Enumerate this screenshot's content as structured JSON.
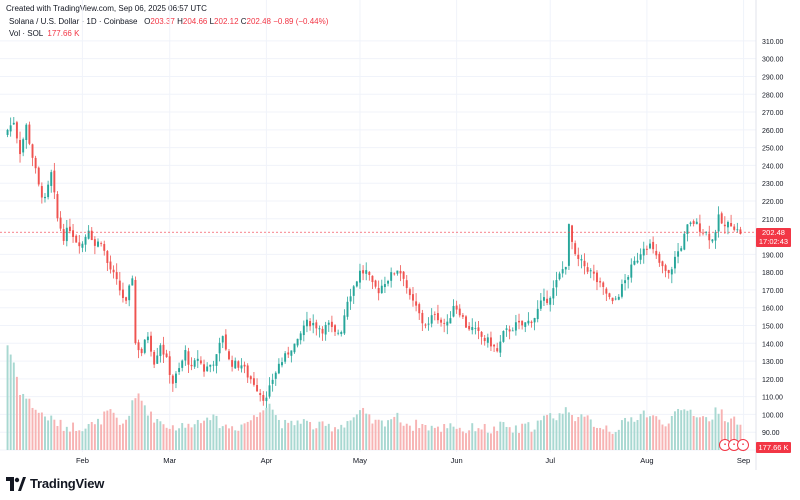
{
  "header": {
    "created": "Created with TradingView.com, Sep 06, 2025 06:57 UTC",
    "symbol": "Solana / U.S. Dollar · 1D · Coinbase",
    "o_label": "O",
    "o_value": "203.37",
    "h_label": "H",
    "h_value": "204.66",
    "l_label": "L",
    "l_value": "202.12",
    "c_label": "C",
    "c_value": "202.48",
    "change": "−0.89 (−0.44%)",
    "vol_label": "Vol · SOL",
    "vol_value": "177.66 K"
  },
  "price_badge": {
    "price": "202.48",
    "countdown": "17:02:43"
  },
  "volume_badge": "177.66 K",
  "footer": {
    "brand": "TradingView"
  },
  "colors": {
    "up": "#26a69a",
    "down": "#ef5350",
    "up_vol": "#a8d8d1",
    "down_vol": "#f7b3b3",
    "badge": "#f23645"
  },
  "event_icons": [
    "calendar-icon",
    "calendar-icon",
    "calendar-icon"
  ],
  "chart_data": {
    "type": "candlestick",
    "ylim": [
      80,
      315
    ],
    "yticks": [
      80,
      90,
      100,
      110,
      120,
      130,
      140,
      150,
      160,
      170,
      180,
      190,
      200,
      210,
      220,
      230,
      240,
      250,
      260,
      270,
      280,
      290,
      300,
      310
    ],
    "ytick_labels": [
      "80.00",
      "90.00",
      "100.00",
      "110.00",
      "120.00",
      "130.00",
      "140.00",
      "150.00",
      "160.00",
      "170.00",
      "180.00",
      "190.00",
      "200.00",
      "210.00",
      "220.00",
      "230.00",
      "240.00",
      "250.00",
      "260.00",
      "270.00",
      "280.00",
      "290.00",
      "300.00",
      "310.00"
    ],
    "x_labels": [
      {
        "label": "Feb",
        "bar": 24
      },
      {
        "label": "Mar",
        "bar": 52
      },
      {
        "label": "Apr",
        "bar": 83
      },
      {
        "label": "May",
        "bar": 113
      },
      {
        "label": "Jun",
        "bar": 144
      },
      {
        "label": "Jul",
        "bar": 174
      },
      {
        "label": "Aug",
        "bar": 205
      },
      {
        "label": "Sep",
        "bar": 236
      }
    ],
    "last_price": 202.48,
    "close_path": [
      [
        0,
        260
      ],
      [
        2,
        265
      ],
      [
        4,
        248
      ],
      [
        6,
        262
      ],
      [
        8,
        245
      ],
      [
        10,
        228
      ],
      [
        12,
        220
      ],
      [
        14,
        235
      ],
      [
        16,
        210
      ],
      [
        18,
        200
      ],
      [
        20,
        205
      ],
      [
        22,
        198
      ],
      [
        24,
        196
      ],
      [
        26,
        205
      ],
      [
        28,
        195
      ],
      [
        30,
        198
      ],
      [
        32,
        185
      ],
      [
        34,
        178
      ],
      [
        36,
        170
      ],
      [
        38,
        162
      ],
      [
        40,
        178
      ],
      [
        41,
        140
      ],
      [
        43,
        135
      ],
      [
        45,
        145
      ],
      [
        47,
        130
      ],
      [
        49,
        140
      ],
      [
        51,
        130
      ],
      [
        53,
        118
      ],
      [
        55,
        125
      ],
      [
        57,
        135
      ],
      [
        59,
        125
      ],
      [
        61,
        132
      ],
      [
        63,
        125
      ],
      [
        65,
        128
      ],
      [
        67,
        132
      ],
      [
        69,
        145
      ],
      [
        71,
        130
      ],
      [
        73,
        128
      ],
      [
        75,
        128
      ],
      [
        77,
        122
      ],
      [
        79,
        118
      ],
      [
        81,
        112
      ],
      [
        83,
        108
      ],
      [
        85,
        120
      ],
      [
        87,
        128
      ],
      [
        89,
        132
      ],
      [
        91,
        138
      ],
      [
        93,
        140
      ],
      [
        95,
        150
      ],
      [
        97,
        152
      ],
      [
        99,
        150
      ],
      [
        101,
        148
      ],
      [
        103,
        150
      ],
      [
        105,
        145
      ],
      [
        107,
        148
      ],
      [
        109,
        165
      ],
      [
        111,
        172
      ],
      [
        113,
        180
      ],
      [
        115,
        180
      ],
      [
        117,
        172
      ],
      [
        119,
        170
      ],
      [
        121,
        175
      ],
      [
        123,
        178
      ],
      [
        125,
        182
      ],
      [
        127,
        178
      ],
      [
        129,
        165
      ],
      [
        131,
        160
      ],
      [
        133,
        152
      ],
      [
        135,
        150
      ],
      [
        137,
        158
      ],
      [
        139,
        152
      ],
      [
        141,
        150
      ],
      [
        143,
        162
      ],
      [
        145,
        158
      ],
      [
        147,
        150
      ],
      [
        149,
        148
      ],
      [
        151,
        145
      ],
      [
        153,
        142
      ],
      [
        155,
        140
      ],
      [
        157,
        135
      ],
      [
        159,
        145
      ],
      [
        161,
        148
      ],
      [
        163,
        150
      ],
      [
        165,
        150
      ],
      [
        167,
        152
      ],
      [
        169,
        155
      ],
      [
        171,
        162
      ],
      [
        173,
        165
      ],
      [
        175,
        170
      ],
      [
        177,
        178
      ],
      [
        179,
        185
      ],
      [
        180,
        205
      ],
      [
        182,
        188
      ],
      [
        184,
        185
      ],
      [
        186,
        182
      ],
      [
        188,
        178
      ],
      [
        190,
        172
      ],
      [
        192,
        168
      ],
      [
        194,
        162
      ],
      [
        196,
        168
      ],
      [
        198,
        175
      ],
      [
        200,
        182
      ],
      [
        202,
        188
      ],
      [
        204,
        195
      ],
      [
        206,
        195
      ],
      [
        208,
        188
      ],
      [
        210,
        182
      ],
      [
        212,
        178
      ],
      [
        214,
        188
      ],
      [
        216,
        195
      ],
      [
        218,
        205
      ],
      [
        220,
        208
      ],
      [
        222,
        205
      ],
      [
        224,
        202
      ],
      [
        226,
        198
      ],
      [
        228,
        210
      ],
      [
        230,
        205
      ],
      [
        232,
        208
      ],
      [
        234,
        203
      ],
      [
        235,
        202.48
      ]
    ],
    "volume_path": [
      [
        0,
        138
      ],
      [
        2,
        128
      ],
      [
        4,
        112
      ],
      [
        6,
        108
      ],
      [
        8,
        104
      ],
      [
        10,
        100
      ],
      [
        12,
        98
      ],
      [
        14,
        96
      ],
      [
        16,
        94
      ],
      [
        18,
        92
      ],
      [
        20,
        92
      ],
      [
        22,
        92
      ],
      [
        24,
        92
      ],
      [
        26,
        94
      ],
      [
        28,
        92
      ],
      [
        30,
        96
      ],
      [
        32,
        100
      ],
      [
        34,
        98
      ],
      [
        36,
        92
      ],
      [
        38,
        96
      ],
      [
        40,
        104
      ],
      [
        42,
        110
      ],
      [
        44,
        104
      ],
      [
        46,
        98
      ],
      [
        48,
        96
      ],
      [
        50,
        94
      ],
      [
        52,
        92
      ],
      [
        54,
        92
      ],
      [
        56,
        92
      ],
      [
        58,
        92
      ],
      [
        60,
        96
      ],
      [
        62,
        94
      ],
      [
        64,
        100
      ],
      [
        66,
        96
      ],
      [
        68,
        94
      ],
      [
        70,
        92
      ],
      [
        72,
        92
      ],
      [
        74,
        92
      ],
      [
        76,
        94
      ],
      [
        78,
        96
      ],
      [
        80,
        98
      ],
      [
        82,
        104
      ],
      [
        84,
        106
      ],
      [
        86,
        98
      ],
      [
        88,
        94
      ],
      [
        90,
        92
      ],
      [
        92,
        94
      ],
      [
        94,
        96
      ],
      [
        96,
        94
      ],
      [
        98,
        92
      ],
      [
        100,
        92
      ],
      [
        102,
        92
      ],
      [
        104,
        92
      ],
      [
        106,
        92
      ],
      [
        108,
        94
      ],
      [
        110,
        96
      ],
      [
        112,
        98
      ],
      [
        114,
        100
      ],
      [
        116,
        96
      ],
      [
        118,
        94
      ],
      [
        120,
        94
      ],
      [
        122,
        96
      ],
      [
        124,
        98
      ],
      [
        126,
        96
      ],
      [
        128,
        94
      ],
      [
        130,
        92
      ],
      [
        132,
        94
      ],
      [
        134,
        92
      ],
      [
        136,
        92
      ],
      [
        138,
        90
      ],
      [
        140,
        92
      ],
      [
        142,
        94
      ],
      [
        144,
        92
      ],
      [
        146,
        90
      ],
      [
        148,
        90
      ],
      [
        150,
        92
      ],
      [
        152,
        92
      ],
      [
        154,
        90
      ],
      [
        156,
        90
      ],
      [
        158,
        92
      ],
      [
        160,
        92
      ],
      [
        162,
        90
      ],
      [
        164,
        90
      ],
      [
        166,
        92
      ],
      [
        168,
        92
      ],
      [
        170,
        94
      ],
      [
        172,
        96
      ],
      [
        174,
        98
      ],
      [
        176,
        98
      ],
      [
        178,
        100
      ],
      [
        180,
        102
      ],
      [
        182,
        98
      ],
      [
        184,
        96
      ],
      [
        186,
        96
      ],
      [
        188,
        94
      ],
      [
        190,
        92
      ],
      [
        192,
        92
      ],
      [
        194,
        90
      ],
      [
        196,
        92
      ],
      [
        198,
        94
      ],
      [
        200,
        96
      ],
      [
        202,
        98
      ],
      [
        204,
        100
      ],
      [
        206,
        98
      ],
      [
        208,
        96
      ],
      [
        210,
        94
      ],
      [
        212,
        96
      ],
      [
        214,
        98
      ],
      [
        216,
        100
      ],
      [
        218,
        102
      ],
      [
        220,
        100
      ],
      [
        222,
        98
      ],
      [
        224,
        96
      ],
      [
        226,
        98
      ],
      [
        228,
        102
      ],
      [
        230,
        98
      ],
      [
        232,
        96
      ],
      [
        234,
        94
      ],
      [
        235,
        92
      ]
    ],
    "bar_count": 236
  }
}
